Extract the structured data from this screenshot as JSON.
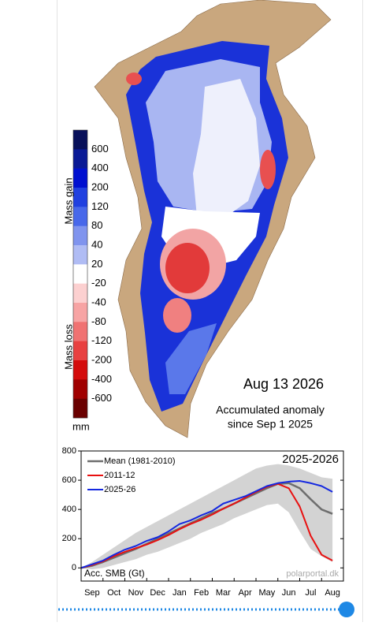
{
  "map": {
    "date": "Aug 13 2026",
    "annotation": [
      "Accumulated anomaly",
      "since Sep 1 2025"
    ],
    "gain_label": "Mass gain",
    "loss_label": "Mass loss",
    "unit": "mm",
    "colorbar": {
      "labels": [
        "600",
        "400",
        "200",
        "120",
        "80",
        "40",
        "20",
        "-20",
        "-40",
        "-80",
        "-120",
        "-200",
        "-400",
        "-600"
      ],
      "colors": [
        "#08105a",
        "#0a1a96",
        "#0010d0",
        "#2040e0",
        "#4868ea",
        "#8094ee",
        "#b0bcf4",
        "#ffffff",
        "#fcd0d0",
        "#f7a4a4",
        "#f07272",
        "#e84040",
        "#d40c0c",
        "#a00000",
        "#6a0000"
      ]
    }
  },
  "chart_data": {
    "type": "line",
    "title": "2025-2026",
    "ylabel": "Acc. SMB (Gt)",
    "source": "polarportal.dk",
    "categories": [
      null,
      "Sep",
      null,
      "Oct",
      null,
      "Nov",
      null,
      "Dec",
      null,
      "Jan",
      null,
      "Feb",
      null,
      "Mar",
      null,
      "Apr",
      null,
      "May",
      null,
      "Jun",
      null,
      "Jul",
      null,
      "Aug"
    ],
    "ylim": [
      -90,
      800
    ],
    "yticks": [
      0,
      200,
      400,
      600,
      800
    ],
    "legend": "upper left",
    "range": {
      "color": "#d3d3d3",
      "high": [
        0,
        40,
        90,
        140,
        190,
        240,
        280,
        320,
        360,
        400,
        440,
        480,
        520,
        560,
        600,
        640,
        680,
        700,
        710,
        700,
        680,
        650,
        620,
        610
      ],
      "low": [
        0,
        -10,
        0,
        20,
        40,
        60,
        90,
        110,
        140,
        170,
        200,
        240,
        270,
        300,
        340,
        370,
        400,
        430,
        440,
        380,
        250,
        130,
        80,
        40
      ]
    },
    "series": [
      {
        "name": "Mean (1981-2010)",
        "color": "#6e6e6e",
        "width": 2.5,
        "values": [
          0,
          15,
          40,
          70,
          100,
          130,
          165,
          200,
          235,
          270,
          305,
          340,
          375,
          405,
          440,
          475,
          510,
          545,
          575,
          580,
          545,
          470,
          400,
          370
        ]
      },
      {
        "name": "2011-12",
        "color": "#e81010",
        "width": 2,
        "values": [
          0,
          20,
          45,
          80,
          110,
          135,
          160,
          190,
          225,
          265,
          300,
          330,
          365,
          405,
          440,
          480,
          520,
          555,
          575,
          545,
          420,
          220,
          90,
          50
        ]
      },
      {
        "name": "2025-26",
        "color": "#1428e0",
        "width": 2,
        "values": [
          0,
          25,
          50,
          90,
          125,
          150,
          185,
          210,
          250,
          300,
          325,
          360,
          390,
          440,
          465,
          490,
          525,
          560,
          580,
          590,
          595,
          580,
          560,
          520
        ]
      }
    ]
  }
}
